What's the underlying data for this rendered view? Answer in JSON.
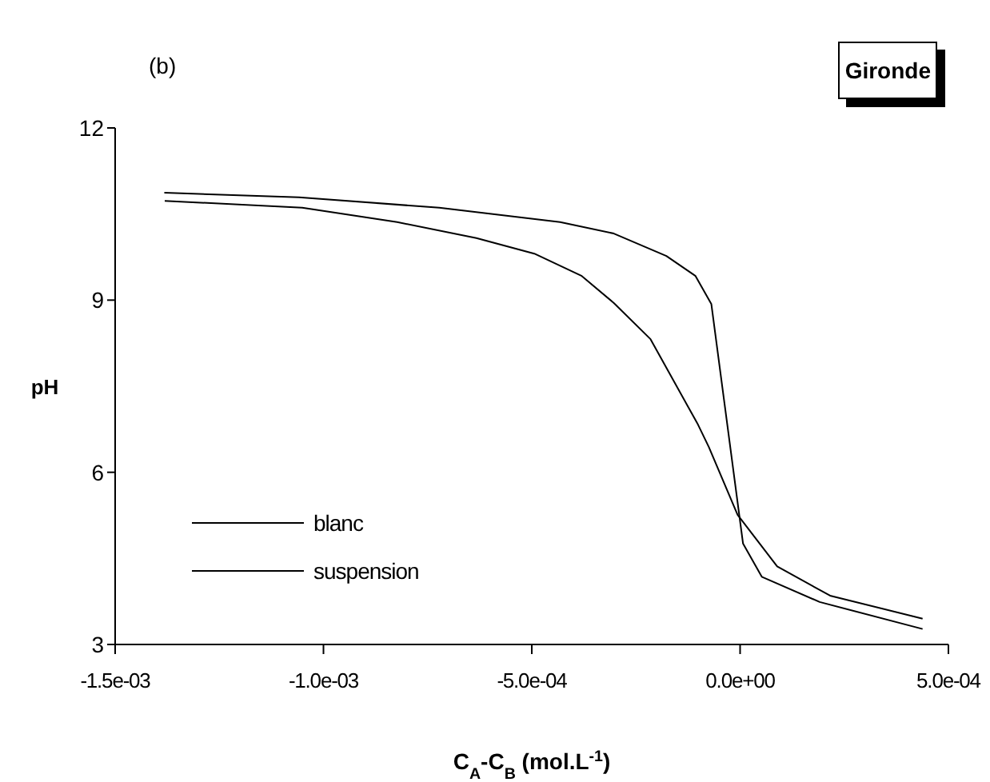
{
  "chart_data": {
    "type": "line",
    "xlabel": "C$_{A}$-C$_{B}$ (mol.L$^{-1}$)",
    "ylabel": "pH",
    "annotations": [
      "(b)",
      "Gironde"
    ],
    "xlim": [
      -0.0015,
      0.0005
    ],
    "xticks": [
      {
        "value": -0.0015,
        "label": "-1.5e-03"
      },
      {
        "value": -0.001,
        "label": "-1.0e-03"
      },
      {
        "value": -0.0005,
        "label": "-5.0e-04"
      },
      {
        "value": 0,
        "label": "0.0e+00"
      },
      {
        "value": 0.0005,
        "label": "5.0e-04"
      }
    ],
    "ylim": [
      3,
      12
    ],
    "yticks": [
      3,
      6,
      9,
      12
    ],
    "grid": false,
    "legend": "bottom left",
    "marker": "none",
    "line_style": "solid",
    "series": [
      {
        "name": "blanc",
        "color": "#000000",
        "x": [
          -0.001382,
          -0.001059,
          -0.000722,
          -0.000432,
          -0.000303,
          -0.000177,
          -0.000107,
          -6.9e-05,
          7e-06,
          5.2e-05,
          0.000191,
          0.000438
        ],
        "values": [
          10.87,
          10.79,
          10.61,
          10.36,
          10.16,
          9.77,
          9.42,
          8.93,
          4.76,
          4.18,
          3.74,
          3.27
        ]
      },
      {
        "name": "suspension",
        "color": "#000000",
        "x": [
          -0.001381,
          -0.001051,
          -0.000823,
          -0.000633,
          -0.000494,
          -0.00038,
          -0.000303,
          -0.000215,
          -0.000101,
          -7.5e-05,
          -6e-06,
          8.9e-05,
          0.000216,
          0.000438
        ],
        "values": [
          10.73,
          10.61,
          10.36,
          10.08,
          9.81,
          9.42,
          8.95,
          8.32,
          6.83,
          6.44,
          5.26,
          4.36,
          3.85,
          3.45
        ]
      }
    ]
  }
}
